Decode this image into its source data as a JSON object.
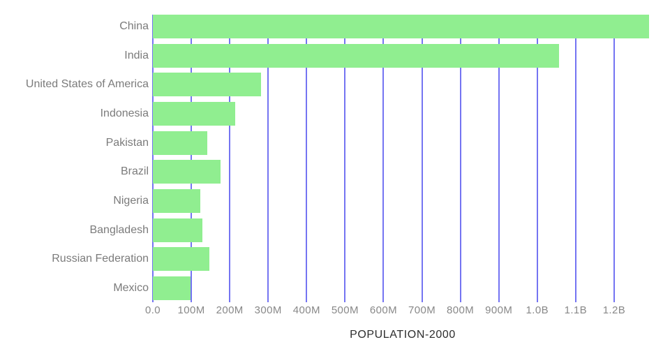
{
  "chart_data": {
    "type": "bar",
    "orientation": "horizontal",
    "title": "POPULATION-2000",
    "xlabel": "",
    "ylabel": "",
    "legend": false,
    "grid": true,
    "categories": [
      "China",
      "India",
      "United States of America",
      "Indonesia",
      "Pakistan",
      "Brazil",
      "Nigeria",
      "Bangladesh",
      "Russian Federation",
      "Mexico"
    ],
    "values_millions": [
      1291,
      1056,
      282,
      214,
      142,
      176,
      123,
      129,
      147,
      98
    ],
    "x_ticks": [
      {
        "value_millions": 0,
        "label": "0.0"
      },
      {
        "value_millions": 100,
        "label": "100M"
      },
      {
        "value_millions": 200,
        "label": "200M"
      },
      {
        "value_millions": 300,
        "label": "300M"
      },
      {
        "value_millions": 400,
        "label": "400M"
      },
      {
        "value_millions": 500,
        "label": "500M"
      },
      {
        "value_millions": 600,
        "label": "600M"
      },
      {
        "value_millions": 700,
        "label": "700M"
      },
      {
        "value_millions": 800,
        "label": "800M"
      },
      {
        "value_millions": 900,
        "label": "900M"
      },
      {
        "value_millions": 1000,
        "label": "1.0B"
      },
      {
        "value_millions": 1100,
        "label": "1.1B"
      },
      {
        "value_millions": 1200,
        "label": "1.2B"
      }
    ],
    "xlim_millions": [
      0,
      1300
    ],
    "colors": {
      "bar": "#90EE90",
      "gridline": "#7474F2",
      "category_label": "#7B7B7B",
      "tick_label": "#888888",
      "title": "#2D2D2D",
      "background": "#FFFFFF"
    }
  }
}
